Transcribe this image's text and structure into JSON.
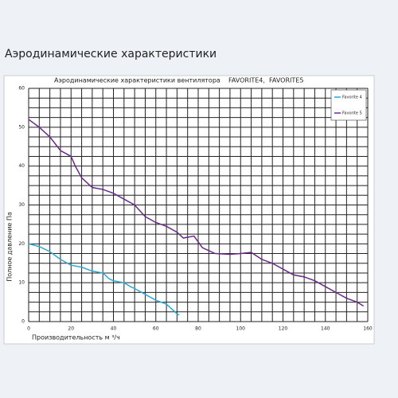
{
  "heading": "Аэродинамические характеристики",
  "chart_data": {
    "type": "line",
    "title": "Аэродинамические характеристики вентилятора    FAVORITE4,  FAVORITE5",
    "x_label": "Производительность м ³/ч",
    "y_label": "Полное давление Па",
    "xlim": [
      0,
      160
    ],
    "ylim": [
      0,
      60
    ],
    "xticks": [
      0,
      20,
      40,
      60,
      80,
      100,
      120,
      140,
      160
    ],
    "yticks": [
      0,
      10,
      20,
      30,
      40,
      50,
      60
    ],
    "xgrid": [
      0,
      5,
      10,
      15,
      20,
      25,
      30,
      35,
      40,
      45,
      50,
      55,
      60,
      65,
      70,
      75,
      80,
      85,
      90,
      95,
      100,
      105,
      110,
      115,
      120,
      125,
      130,
      135,
      140,
      145,
      150,
      155,
      160
    ],
    "ygrid": [
      0,
      2.5,
      5,
      7.5,
      10,
      12.5,
      15,
      17.5,
      20,
      22.5,
      25,
      27.5,
      30,
      32.5,
      35,
      37.5,
      40,
      42.5,
      45,
      47.5,
      50,
      52.5,
      55,
      57.5,
      60
    ],
    "legend": "upper right",
    "series": [
      {
        "name": "Favorite 4",
        "color": "#2aa8d4",
        "x": [
          0,
          5,
          10,
          15,
          20,
          25,
          30,
          35,
          38,
          40,
          45,
          48,
          50,
          55,
          60,
          65,
          70,
          71
        ],
        "values": [
          20,
          19.3,
          18,
          16,
          14.5,
          14,
          13,
          12.5,
          11,
          10.5,
          10,
          9,
          8.5,
          7,
          5.5,
          4.5,
          2,
          1.7
        ]
      },
      {
        "name": "Favorite 5",
        "color": "#6a2a8a",
        "x": [
          0,
          5,
          10,
          15,
          20,
          22,
          25,
          30,
          35,
          40,
          45,
          50,
          55,
          60,
          65,
          70,
          73,
          78,
          82,
          88,
          95,
          100,
          105,
          110,
          115,
          120,
          125,
          130,
          135,
          140,
          145,
          150,
          155,
          158
        ],
        "values": [
          52,
          50,
          47.5,
          44,
          42.5,
          40,
          37,
          34.5,
          34,
          33,
          31.5,
          30,
          27,
          25.5,
          24.5,
          23,
          21.5,
          22,
          19,
          17.5,
          17.3,
          17.5,
          17.8,
          16,
          15,
          13.5,
          12,
          11.5,
          10.5,
          9,
          7.5,
          6,
          5,
          4
        ]
      }
    ]
  }
}
